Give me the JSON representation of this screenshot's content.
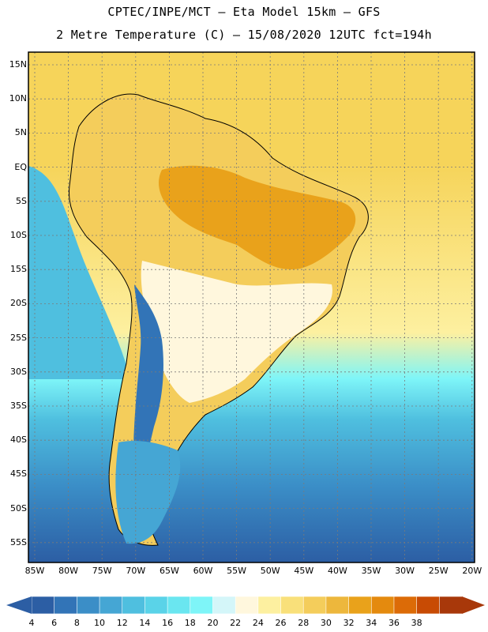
{
  "header": {
    "line1": "CPTEC/INPE/MCT –  Eta Model 15km – GFS",
    "line2": "2 Metre Temperature (C) – 15/08/2020 12UTC fct=194h"
  },
  "axes": {
    "lat_labels": [
      "15N",
      "10N",
      "5N",
      "EQ",
      "5S",
      "10S",
      "15S",
      "20S",
      "25S",
      "30S",
      "35S",
      "40S",
      "45S",
      "50S",
      "55S"
    ],
    "lon_labels": [
      "85W",
      "80W",
      "75W",
      "70W",
      "65W",
      "60W",
      "55W",
      "50W",
      "45W",
      "40W",
      "35W",
      "30W",
      "25W",
      "20W"
    ]
  },
  "colorbar": {
    "labels": [
      "4",
      "6",
      "8",
      "10",
      "12",
      "14",
      "16",
      "18",
      "20",
      "22",
      "24",
      "26",
      "28",
      "30",
      "32",
      "34",
      "36",
      "38"
    ],
    "colors": [
      "#2c5ea4",
      "#3274b7",
      "#3b8ec7",
      "#45a6d4",
      "#4fbfdf",
      "#5ad3e8",
      "#6ae6f0",
      "#7ef5f8",
      "#d4f6f9",
      "#fff7dd",
      "#fdf0a0",
      "#f9e07a",
      "#f4cd5b",
      "#edb73c",
      "#e9a21b",
      "#e48a0e",
      "#dc6b07",
      "#c84b04",
      "#a8380a"
    ],
    "left_arrow_color": "#2c5ea4",
    "right_arrow_color": "#a8380a"
  },
  "map_colors": {
    "ocean_tropical": "#f6d45a",
    "ocean_subtropical": "#fdf0a0",
    "ocean_cool": "#7ef5f8",
    "ocean_mid": "#4fbfdf",
    "ocean_cold": "#3b8ec7",
    "ocean_south": "#2c5ea4",
    "amazon_hot": "#e9a21b",
    "land_warm": "#f4cd5b",
    "land_mild": "#fff7dd",
    "andes": "#3274b7",
    "patagonia": "#45a6d4",
    "border_line": "#000000",
    "grid_line": "#7a7a7a"
  }
}
